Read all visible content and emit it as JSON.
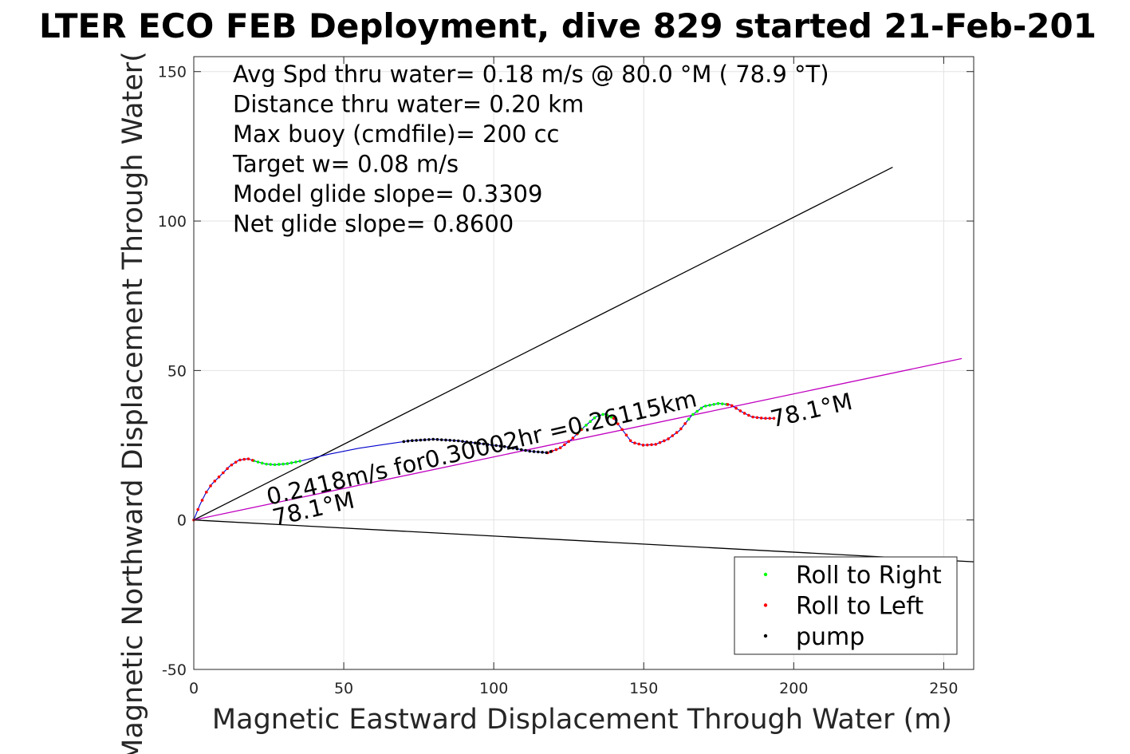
{
  "chart_data": {
    "type": "scatter",
    "title": "LTER ECO FEB Deployment, dive 829 started 21-Feb-201",
    "xlabel": "Magnetic Eastward Displacement Through Water (m)",
    "ylabel": "Magnetic Northward Displacement Through Water(",
    "xlim": [
      0,
      260
    ],
    "ylim": [
      -50,
      155
    ],
    "xticks": [
      0,
      50,
      100,
      150,
      200,
      250
    ],
    "yticks": [
      -50,
      0,
      50,
      100,
      150
    ],
    "xtick_labels": [
      "0",
      "50",
      "100",
      "150",
      "200",
      "250"
    ],
    "ytick_labels": [
      "-50",
      "0",
      "50",
      "100",
      "150"
    ],
    "grid": true,
    "legend_position": "bottom-right",
    "info_lines": [
      "Avg Spd thru water=  0.18 m/s @  80.0 °M ( 78.9 °T)",
      "Distance thru water=  0.20 km",
      "Max buoy (cmdfile)= 200 cc",
      "Target w= 0.08 m/s",
      "Model glide slope= 0.3309",
      "Net glide slope= 0.8600"
    ],
    "annotations": [
      {
        "text": "0.2418m/s for0.30002hr =0.26115km",
        "x": 25,
        "y": 5,
        "angle_deg": 13
      },
      {
        "text": "78.1°M",
        "x": 27,
        "y": -2,
        "angle_deg": 13
      },
      {
        "text": "78.1°M",
        "x": 193,
        "y": 31,
        "angle_deg": 13
      }
    ],
    "lines": [
      {
        "name": "upper-envelope",
        "color": "#000000",
        "points": [
          [
            0,
            0
          ],
          [
            233,
            118
          ]
        ]
      },
      {
        "name": "lower-envelope",
        "color": "#000000",
        "points": [
          [
            0,
            0
          ],
          [
            260,
            -14
          ]
        ]
      },
      {
        "name": "net-track",
        "color": "#c000c0",
        "points": [
          [
            0,
            0
          ],
          [
            256,
            54
          ]
        ]
      }
    ],
    "track": {
      "color": "#0000cc",
      "points": [
        [
          0,
          0
        ],
        [
          2,
          5
        ],
        [
          4,
          9
        ],
        [
          6,
          12
        ],
        [
          9,
          15
        ],
        [
          12,
          18
        ],
        [
          15,
          20
        ],
        [
          18,
          20.5
        ],
        [
          21,
          19.5
        ],
        [
          24,
          18.7
        ],
        [
          27,
          18.5
        ],
        [
          31,
          18.8
        ],
        [
          36,
          19.8
        ],
        [
          45,
          22
        ],
        [
          55,
          24
        ],
        [
          65,
          25.5
        ],
        [
          72,
          26.5
        ],
        [
          80,
          27
        ],
        [
          88,
          26.5
        ],
        [
          96,
          25.5
        ],
        [
          104,
          24.5
        ],
        [
          112,
          23
        ],
        [
          118,
          22.5
        ],
        [
          122,
          24
        ],
        [
          126,
          27
        ],
        [
          130,
          31
        ],
        [
          134,
          34.5
        ],
        [
          137,
          35.5
        ],
        [
          140,
          34
        ],
        [
          143,
          30
        ],
        [
          146,
          26
        ],
        [
          150,
          25
        ],
        [
          154,
          25.3
        ],
        [
          158,
          27
        ],
        [
          162,
          30
        ],
        [
          166,
          35
        ],
        [
          170,
          38
        ],
        [
          175,
          39
        ],
        [
          179,
          38.5
        ],
        [
          183,
          36
        ],
        [
          186,
          34.5
        ],
        [
          190,
          34
        ],
        [
          193,
          34
        ]
      ]
    },
    "series": [
      {
        "name": "Roll to Right",
        "color": "#00ff00",
        "ranges": [
          [
            20,
            36
          ],
          [
            128,
            140
          ],
          [
            165,
            178
          ]
        ]
      },
      {
        "name": "Roll to Left",
        "color": "#ff0000",
        "ranges": [
          [
            0,
            20
          ],
          [
            118,
            130
          ],
          [
            140,
            165
          ],
          [
            178,
            194
          ]
        ]
      },
      {
        "name": "pump",
        "color": "#000000",
        "ranges": [
          [
            70,
            120
          ]
        ]
      }
    ]
  }
}
